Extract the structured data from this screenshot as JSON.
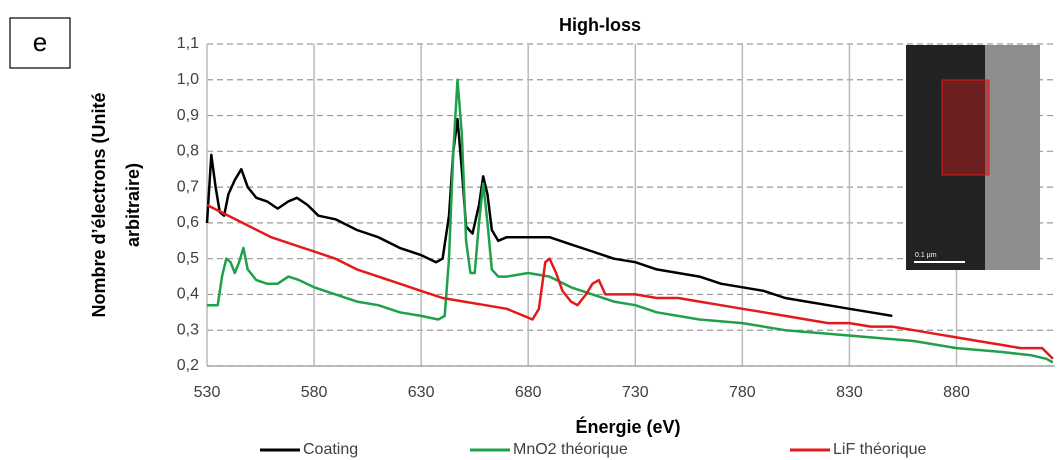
{
  "chart_data": {
    "type": "line",
    "title": "High-loss",
    "panel_label": "e",
    "x_label": "Énergie (eV)",
    "y_label": [
      "Nombre d’électrons (Unité",
      "arbitraire)"
    ],
    "inset_scale_label": "0.1 µm",
    "xlim": [
      530,
      926
    ],
    "xticks": [
      530,
      580,
      630,
      680,
      730,
      780,
      830,
      880
    ],
    "ylim": [
      0.2,
      1.1
    ],
    "yticks": [
      {
        "value": 0.2,
        "label": "0,2"
      },
      {
        "value": 0.3,
        "label": "0,3"
      },
      {
        "value": 0.4,
        "label": "0,4"
      },
      {
        "value": 0.5,
        "label": "0,5"
      },
      {
        "value": 0.6,
        "label": "0,6"
      },
      {
        "value": 0.7,
        "label": "0,7"
      },
      {
        "value": 0.8,
        "label": "0,8"
      },
      {
        "value": 0.9,
        "label": "0,9"
      },
      {
        "value": 1.0,
        "label": "1,0"
      },
      {
        "value": 1.1,
        "label": "1,1"
      }
    ],
    "grid": true,
    "legend": "bottom",
    "series": [
      {
        "name": "Coating",
        "color": "#000000",
        "x": [
          530,
          532,
          534,
          536,
          538,
          540,
          543,
          546,
          549,
          553,
          558,
          563,
          568,
          572,
          577,
          582,
          590,
          600,
          610,
          620,
          630,
          637,
          640,
          643,
          645,
          647,
          649,
          651,
          654,
          657,
          659,
          661,
          663,
          666,
          670,
          680,
          690,
          700,
          710,
          720,
          730,
          740,
          750,
          760,
          770,
          780,
          790,
          800,
          810,
          820,
          830,
          840,
          850
        ],
        "values": [
          0.6,
          0.79,
          0.7,
          0.63,
          0.62,
          0.68,
          0.72,
          0.75,
          0.7,
          0.67,
          0.66,
          0.64,
          0.66,
          0.67,
          0.65,
          0.62,
          0.61,
          0.58,
          0.56,
          0.53,
          0.51,
          0.49,
          0.5,
          0.62,
          0.8,
          0.89,
          0.75,
          0.59,
          0.57,
          0.65,
          0.73,
          0.68,
          0.58,
          0.55,
          0.56,
          0.56,
          0.56,
          0.54,
          0.52,
          0.5,
          0.49,
          0.47,
          0.46,
          0.45,
          0.43,
          0.42,
          0.41,
          0.39,
          0.38,
          0.37,
          0.36,
          0.35,
          0.34
        ]
      },
      {
        "name": "MnO2 théorique",
        "color": "#1fa04a",
        "x": [
          530,
          535,
          537,
          539,
          541,
          543,
          545,
          547,
          549,
          553,
          558,
          563,
          568,
          573,
          580,
          590,
          600,
          610,
          620,
          630,
          638,
          641,
          643,
          645,
          647,
          649,
          651,
          653,
          655,
          657,
          659,
          661,
          663,
          666,
          670,
          680,
          690,
          700,
          710,
          720,
          730,
          740,
          750,
          760,
          780,
          800,
          820,
          840,
          860,
          880,
          900,
          915,
          922,
          925
        ],
        "values": [
          0.37,
          0.37,
          0.45,
          0.5,
          0.49,
          0.46,
          0.49,
          0.53,
          0.47,
          0.44,
          0.43,
          0.43,
          0.45,
          0.44,
          0.42,
          0.4,
          0.38,
          0.37,
          0.35,
          0.34,
          0.33,
          0.34,
          0.5,
          0.8,
          1.0,
          0.85,
          0.55,
          0.46,
          0.46,
          0.6,
          0.71,
          0.6,
          0.47,
          0.45,
          0.45,
          0.46,
          0.45,
          0.42,
          0.4,
          0.38,
          0.37,
          0.35,
          0.34,
          0.33,
          0.32,
          0.3,
          0.29,
          0.28,
          0.27,
          0.25,
          0.24,
          0.23,
          0.22,
          0.21
        ]
      },
      {
        "name": "LiF théorique",
        "color": "#e31a1c",
        "x": [
          530,
          540,
          550,
          560,
          570,
          580,
          590,
          600,
          610,
          620,
          630,
          640,
          650,
          660,
          670,
          678,
          682,
          685,
          688,
          690,
          693,
          696,
          700,
          703,
          707,
          710,
          713,
          716,
          720,
          730,
          740,
          750,
          760,
          770,
          780,
          790,
          800,
          810,
          820,
          830,
          840,
          850,
          860,
          870,
          880,
          890,
          900,
          910,
          920,
          925
        ],
        "values": [
          0.65,
          0.62,
          0.59,
          0.56,
          0.54,
          0.52,
          0.5,
          0.47,
          0.45,
          0.43,
          0.41,
          0.39,
          0.38,
          0.37,
          0.36,
          0.34,
          0.33,
          0.36,
          0.49,
          0.5,
          0.46,
          0.41,
          0.38,
          0.37,
          0.4,
          0.43,
          0.44,
          0.4,
          0.4,
          0.4,
          0.39,
          0.39,
          0.38,
          0.37,
          0.36,
          0.35,
          0.34,
          0.33,
          0.32,
          0.32,
          0.31,
          0.31,
          0.3,
          0.29,
          0.28,
          0.27,
          0.26,
          0.25,
          0.25,
          0.22
        ]
      }
    ]
  }
}
